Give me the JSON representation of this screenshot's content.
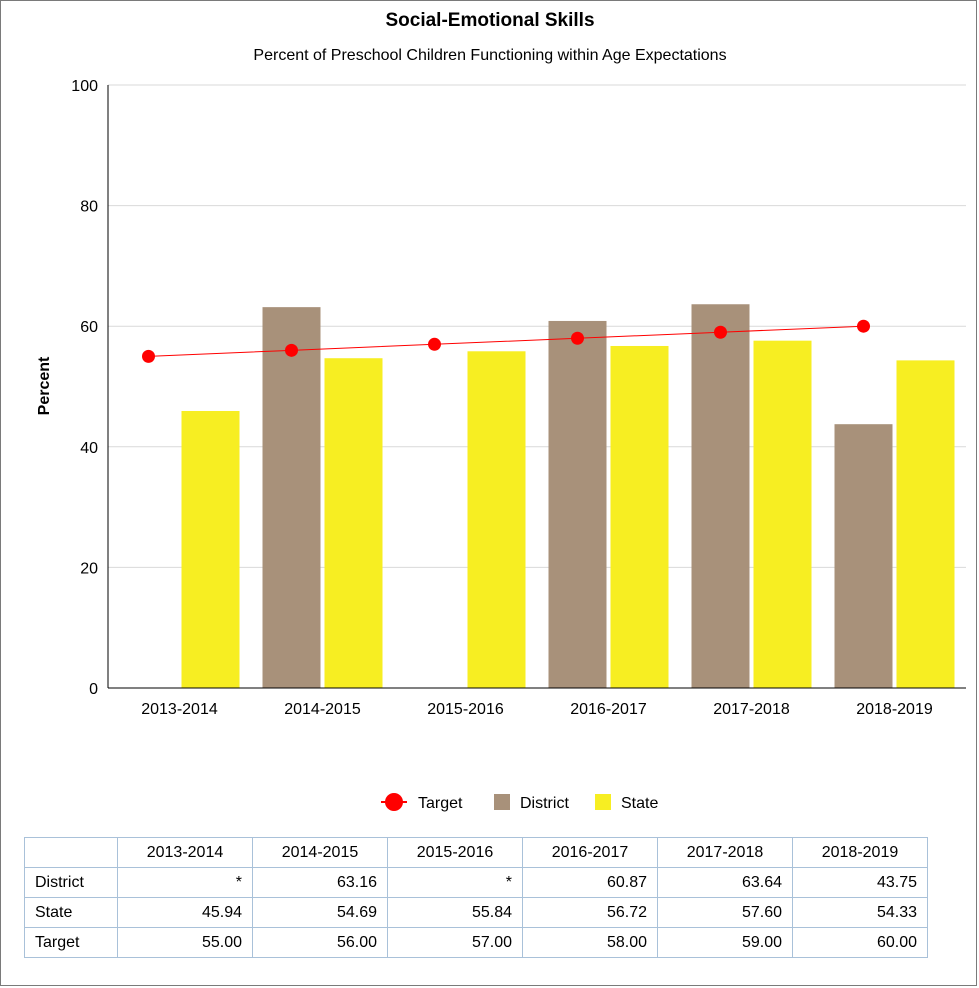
{
  "chart_data": {
    "type": "bar",
    "title": "Social-Emotional Skills",
    "subtitle": "Percent of Preschool Children Functioning within Age Expectations",
    "ylabel": "Percent",
    "xlabel": "",
    "ylim": [
      0,
      100
    ],
    "yticks": [
      0,
      20,
      40,
      60,
      80,
      100
    ],
    "grid": true,
    "legend_position": "bottom",
    "categories": [
      "2013-2014",
      "2014-2015",
      "2015-2016",
      "2016-2017",
      "2017-2018",
      "2018-2019"
    ],
    "series": [
      {
        "name": "District",
        "type": "bar",
        "color": "#a8917a",
        "values": [
          null,
          63.16,
          null,
          60.87,
          63.64,
          43.75
        ]
      },
      {
        "name": "State",
        "type": "bar",
        "color": "#f7ee22",
        "values": [
          45.94,
          54.69,
          55.84,
          56.72,
          57.6,
          54.33
        ]
      },
      {
        "name": "Target",
        "type": "line",
        "color": "#ff0000",
        "values": [
          55.0,
          56.0,
          57.0,
          58.0,
          59.0,
          60.0
        ]
      }
    ],
    "legend": [
      "Target",
      "District",
      "State"
    ]
  },
  "table": {
    "headers": [
      "",
      "2013-2014",
      "2014-2015",
      "2015-2016",
      "2016-2017",
      "2017-2018",
      "2018-2019"
    ],
    "rows": [
      {
        "label": "District",
        "cells": [
          "*",
          "63.16",
          "*",
          "60.87",
          "63.64",
          "43.75"
        ]
      },
      {
        "label": "State",
        "cells": [
          "45.94",
          "54.69",
          "55.84",
          "56.72",
          "57.60",
          "54.33"
        ]
      },
      {
        "label": "Target",
        "cells": [
          "55.00",
          "56.00",
          "57.00",
          "58.00",
          "59.00",
          "60.00"
        ]
      }
    ]
  }
}
